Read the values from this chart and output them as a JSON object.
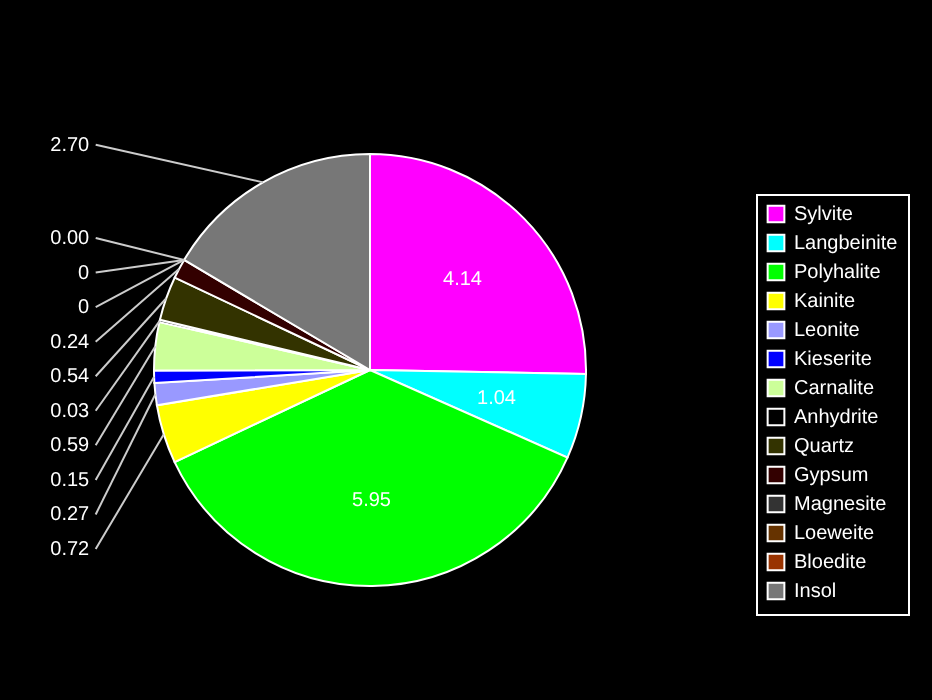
{
  "chart_data": {
    "type": "pie",
    "legend": "right",
    "categories": [
      "Sylvite",
      "Langbeinite",
      "Polyhalite",
      "Kainite",
      "Leonite",
      "Kieserite",
      "Carnalite",
      "Anhydrite",
      "Quartz",
      "Gypsum",
      "Magnesite",
      "Loeweite",
      "Bloedite",
      "Insol"
    ],
    "values": [
      4.14,
      1.04,
      5.95,
      0.72,
      0.27,
      0.15,
      0.59,
      0.03,
      0.54,
      0.24,
      0,
      0,
      0,
      2.7
    ],
    "value_labels": [
      "4.14",
      "1.04",
      "5.95",
      "0.72",
      "0.27",
      "0.15",
      "0.59",
      "0.03",
      "0.54",
      "0.24",
      "0.00",
      "0",
      "0",
      "2.70"
    ],
    "colors": [
      "#ff00ff",
      "#00ffff",
      "#00ff00",
      "#ffff00",
      "#9999ff",
      "#0000ff",
      "#ccff99",
      "#000000",
      "#333300",
      "#330000",
      "#333333",
      "#663300",
      "#993300",
      "#777777"
    ]
  }
}
